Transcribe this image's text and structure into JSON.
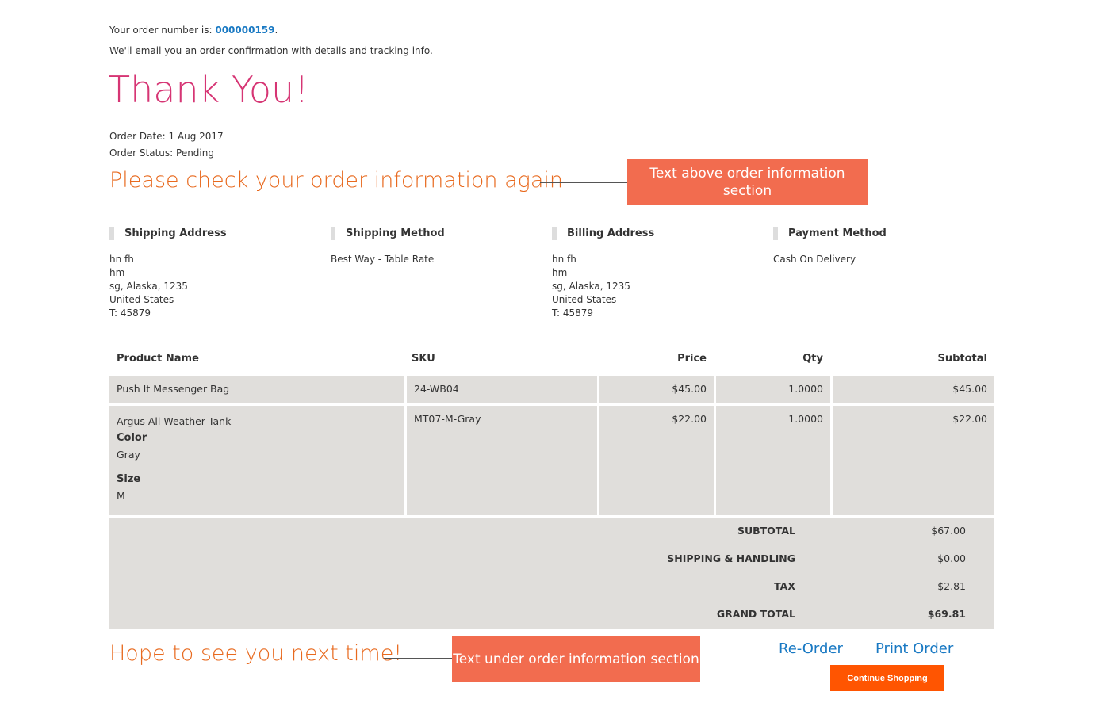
{
  "header": {
    "order_prefix": "Your order number is: ",
    "order_number": "000000159",
    "order_suffix": ".",
    "email_note": "We'll email you an order confirmation with details and tracking info.",
    "thank_you": "Thank You!",
    "order_date": "Order Date: 1 Aug 2017",
    "order_status": "Order Status: Pending"
  },
  "check_heading": "Please check your order information again",
  "callout_above": "Text above order information section",
  "info": [
    {
      "title": "Shipping Address",
      "lines": [
        "hn fh",
        "hm",
        "sg, Alaska, 1235",
        "United States",
        "T: 45879"
      ]
    },
    {
      "title": "Shipping Method",
      "lines": [
        "Best Way - Table Rate"
      ]
    },
    {
      "title": "Billing Address",
      "lines": [
        "hn fh",
        "hm",
        "sg, Alaska, 1235",
        "United States",
        "T: 45879"
      ]
    },
    {
      "title": "Payment Method",
      "lines": [
        "Cash On Delivery"
      ]
    }
  ],
  "table": {
    "headers": [
      "Product Name",
      "SKU",
      "Price",
      "Qty",
      "Subtotal"
    ],
    "rows": [
      {
        "name": "Push It Messenger Bag",
        "sku": "24-WB04",
        "price": "$45.00",
        "qty": "1.0000",
        "subtotal": "$45.00"
      },
      {
        "name": "Argus All-Weather Tank",
        "option1_label": "Color",
        "option1_value": "Gray",
        "option2_label": "Size",
        "option2_value": "M",
        "sku": "MT07-M-Gray",
        "price": "$22.00",
        "qty": "1.0000",
        "subtotal": "$22.00"
      }
    ],
    "totals": [
      {
        "label": "SUBTOTAL",
        "value": "$67.00"
      },
      {
        "label": "SHIPPING & HANDLING",
        "value": "$0.00"
      },
      {
        "label": "TAX",
        "value": "$2.81"
      },
      {
        "label": "GRAND TOTAL",
        "value": "$69.81"
      }
    ]
  },
  "footer": {
    "hope": "Hope to see you next time!",
    "callout_under": "Text under order information section",
    "reorder": "Re-Order",
    "print": "Print Order",
    "continue": "Continue Shopping"
  },
  "colors": {
    "thank_you": "#d63574",
    "heading": "#e86a1f",
    "callout": "#f26c4f",
    "button": "#ff5501",
    "link": "#1979c3",
    "table_bg": "#e0dedb"
  }
}
